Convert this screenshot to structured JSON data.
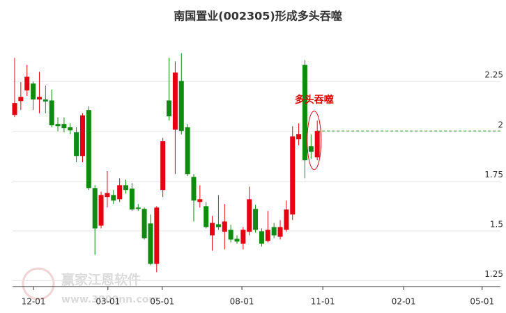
{
  "chart_data": {
    "type": "candlestick",
    "title": "南国置业(002305)形成多头吞噬",
    "x": [
      0,
      1,
      2,
      3,
      4,
      5,
      6,
      7,
      8,
      9,
      10,
      11,
      12,
      13,
      14,
      15,
      16,
      17,
      18,
      19,
      20,
      21,
      22,
      23,
      24,
      25,
      26,
      27,
      28,
      29,
      30,
      31,
      32,
      33,
      34,
      35,
      36,
      37,
      38,
      39,
      40,
      41,
      42,
      43,
      44,
      45,
      46,
      47,
      48,
      49
    ],
    "open": [
      2.082,
      2.152,
      2.205,
      2.24,
      2.16,
      2.16,
      2.155,
      2.037,
      2.037,
      2.02,
      1.995,
      1.876,
      2.107,
      1.715,
      1.526,
      1.67,
      1.68,
      1.659,
      1.729,
      1.712,
      1.617,
      1.61,
      1.537,
      1.334,
      1.705,
      2.155,
      2.008,
      2.253,
      2.02,
      1.771,
      1.645,
      1.624,
      1.477,
      1.533,
      1.495,
      1.505,
      1.46,
      1.435,
      1.495,
      1.61,
      1.498,
      1.449,
      1.519,
      1.47,
      1.505,
      1.582,
      1.96,
      2.334,
      1.925,
      1.869
    ],
    "high": [
      2.369,
      2.247,
      2.334,
      2.25,
      2.299,
      2.23,
      2.21,
      2.07,
      2.07,
      2.04,
      2.02,
      2.09,
      2.125,
      1.729,
      1.697,
      1.8,
      1.705,
      1.764,
      1.757,
      1.74,
      1.635,
      1.617,
      1.582,
      1.624,
      1.967,
      2.369,
      2.351,
      2.393,
      2.037,
      1.785,
      1.729,
      1.645,
      1.575,
      1.68,
      1.635,
      1.53,
      1.477,
      1.519,
      1.722,
      1.631,
      1.512,
      1.6,
      1.54,
      1.554,
      1.652,
      2.026,
      2.04,
      2.358,
      1.984,
      2.054
    ],
    "low": [
      2.072,
      2.107,
      2.177,
      2.107,
      2.09,
      2.09,
      2.02,
      2.0,
      1.995,
      1.985,
      1.845,
      1.845,
      1.705,
      1.38,
      1.512,
      1.617,
      1.635,
      1.645,
      1.687,
      1.6,
      1.6,
      1.456,
      1.327,
      1.292,
      1.67,
      2.054,
      1.785,
      1.984,
      1.775,
      1.547,
      1.617,
      1.512,
      1.4,
      1.505,
      1.407,
      1.442,
      1.435,
      1.407,
      1.477,
      1.491,
      1.421,
      1.442,
      1.463,
      1.456,
      1.495,
      1.554,
      1.93,
      1.764,
      1.862,
      1.855
    ],
    "close": [
      2.142,
      2.173,
      2.274,
      2.16,
      2.173,
      2.15,
      2.03,
      2.026,
      2.016,
      2.005,
      1.876,
      2.08,
      1.715,
      1.512,
      1.68,
      1.69,
      1.652,
      1.729,
      1.705,
      1.607,
      1.61,
      1.463,
      1.334,
      1.617,
      1.95,
      2.075,
      2.295,
      2.002,
      1.785,
      1.652,
      1.659,
      1.519,
      1.54,
      1.519,
      1.547,
      1.456,
      1.446,
      1.505,
      1.659,
      1.505,
      1.435,
      1.505,
      1.477,
      1.519,
      1.607,
      1.974,
      1.985,
      1.855,
      1.897,
      2.002
    ],
    "up_color": "#e60012",
    "down_color": "#118a11",
    "xlim": [
      -0.34,
      78.66
    ],
    "xticks": [
      {
        "value": 3.05,
        "label": "12-01"
      },
      {
        "value": 15.1,
        "label": "03-01"
      },
      {
        "value": 23.9,
        "label": "05-01"
      },
      {
        "value": 36.8,
        "label": "08-01"
      },
      {
        "value": 49.9,
        "label": "11-01"
      },
      {
        "value": 63,
        "label": "02-01"
      },
      {
        "value": 75.7,
        "label": "05-01"
      }
    ],
    "ylim": [
      1.22,
      2.45
    ],
    "yticks": [
      1.25,
      1.5,
      1.75,
      2,
      2.25
    ],
    "grid": true,
    "annotation": "多头吞噬",
    "watermark": [
      "赢家江恩软件",
      "www.3000nn.com"
    ]
  }
}
